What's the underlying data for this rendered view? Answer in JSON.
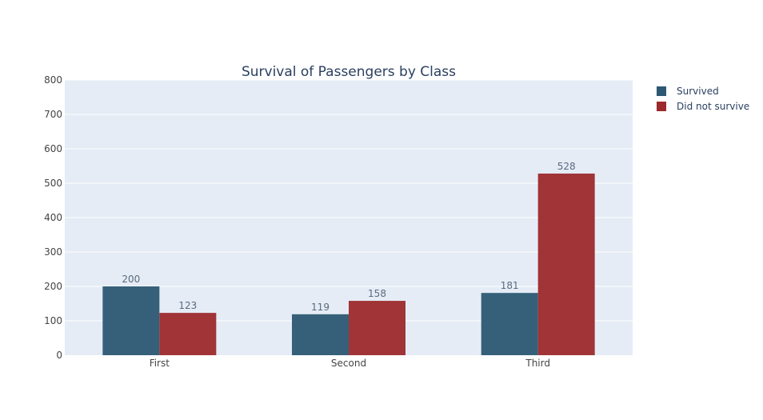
{
  "chart_data": {
    "type": "bar",
    "title": "Survival of Passengers by Class",
    "categories": [
      "First",
      "Second",
      "Third"
    ],
    "series": [
      {
        "name": "Survived",
        "values": [
          200,
          119,
          181
        ],
        "color": "#2c5873"
      },
      {
        "name": "Did not survive",
        "values": [
          123,
          158,
          528
        ],
        "color": "#9c2a2c"
      }
    ],
    "ylim": [
      0,
      800
    ],
    "yticks": [
      0,
      100,
      200,
      300,
      400,
      500,
      600,
      700,
      800
    ],
    "grid": true,
    "legend_position": "top-right",
    "plot_background": "#e5ecf6"
  }
}
